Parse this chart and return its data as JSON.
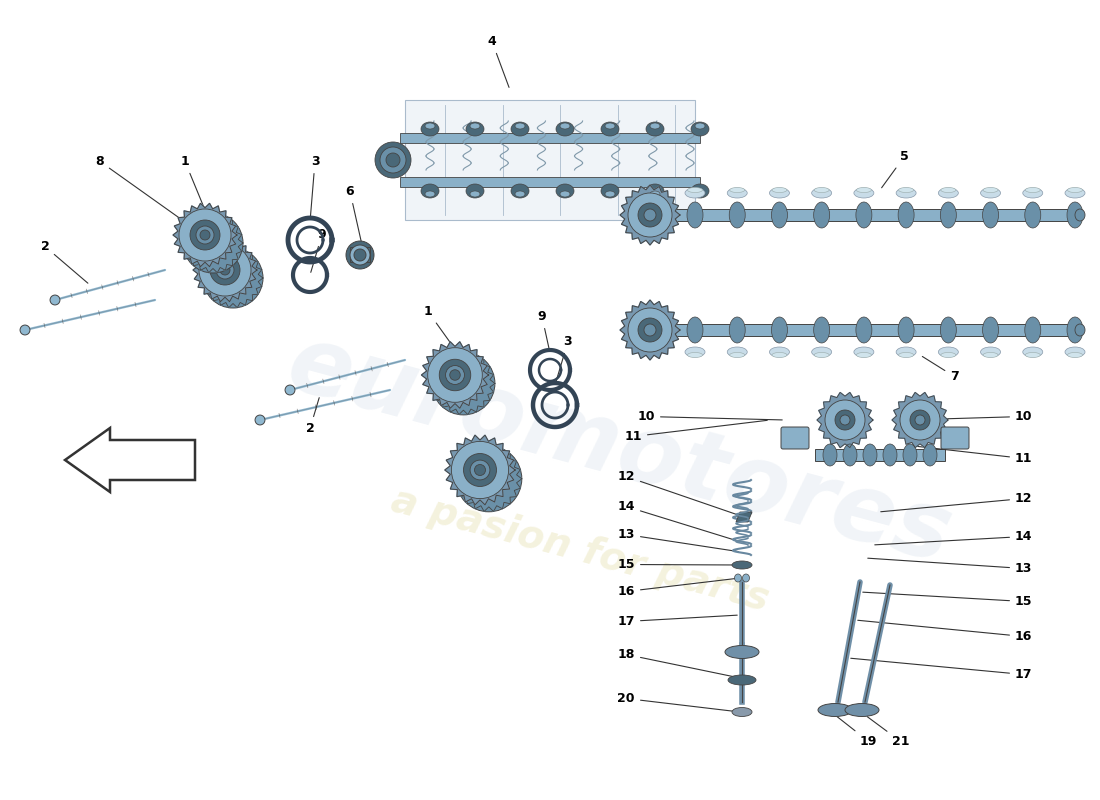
{
  "bg_color": "#ffffff",
  "watermark1": "euromotores",
  "watermark2": "a pasion for parts",
  "wm1_color": "#c0cfe0",
  "wm2_color": "#d8ce80",
  "blue": "#8ab0c8",
  "blue_mid": "#6a90a8",
  "blue_dark": "#4a6878",
  "blue_light": "#c0d8e8",
  "gear_outer": "#7898b0",
  "tappet_color": "#c8dce8",
  "outline": "#444444",
  "bolt_color": "#90b8d0",
  "spring_color": "#6888a0",
  "valve_color": "#7090a8",
  "oring_color": "#334455",
  "wm_alpha": 0.22
}
